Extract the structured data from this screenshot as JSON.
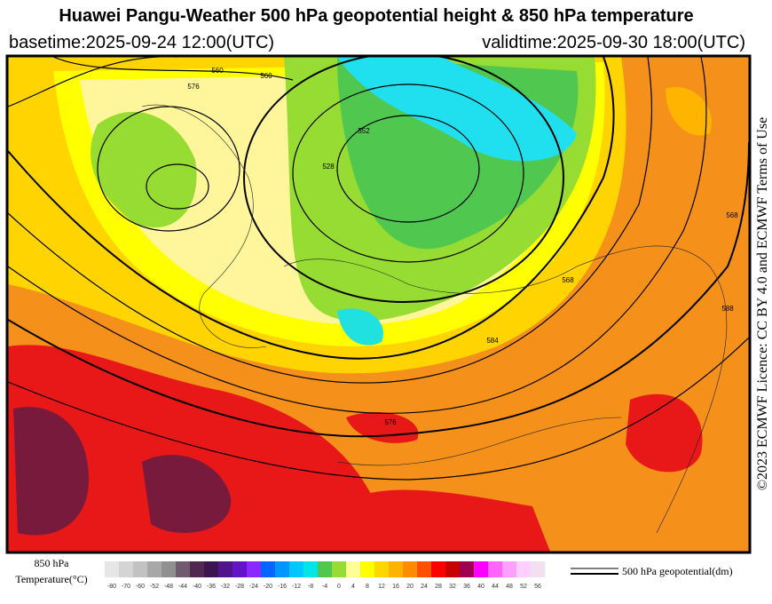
{
  "header": {
    "title": "Huawei Pangu-Weather 500 hPa geopotential height & 850 hPa temperature",
    "basetime": "basetime:2025-09-24 12:00(UTC)",
    "validtime": "validtime:2025-09-30 18:00(UTC)"
  },
  "license": "©2023 ECMWF Licence: CC BY 4.0 and ECMWF Terms of Use",
  "map": {
    "contour_labels": [
      560,
      576,
      560,
      552,
      528,
      568,
      576,
      584,
      588,
      568
    ]
  },
  "legend": {
    "temperature_label": [
      "850 hPa",
      "Temperature(°C)"
    ],
    "ticks": [
      -80,
      -70,
      -60,
      -52,
      -48,
      -44,
      -40,
      -36,
      -32,
      -28,
      -24,
      -20,
      -16,
      -12,
      -8,
      -4,
      0,
      4,
      8,
      12,
      16,
      20,
      24,
      28,
      32,
      36,
      40,
      44,
      48,
      52,
      56
    ],
    "colors": [
      "#e6e6e6",
      "#d4d4d4",
      "#c2c2c2",
      "#a8a8a8",
      "#909090",
      "#705a70",
      "#502850",
      "#3c1450",
      "#50148c",
      "#6414c8",
      "#8c28ff",
      "#0064ff",
      "#0096ff",
      "#00c8ff",
      "#00e6e6",
      "#50c850",
      "#96dc32",
      "#ffff96",
      "#ffff00",
      "#ffd700",
      "#ffb400",
      "#ff8c00",
      "#ff5000",
      "#ff0000",
      "#c80000",
      "#a00050",
      "#ff00ff",
      "#ff64ff",
      "#ffa0ff",
      "#ffd0ff",
      "#f0e0f0"
    ],
    "contour_label": "500 hPa geopotential(dm)"
  }
}
